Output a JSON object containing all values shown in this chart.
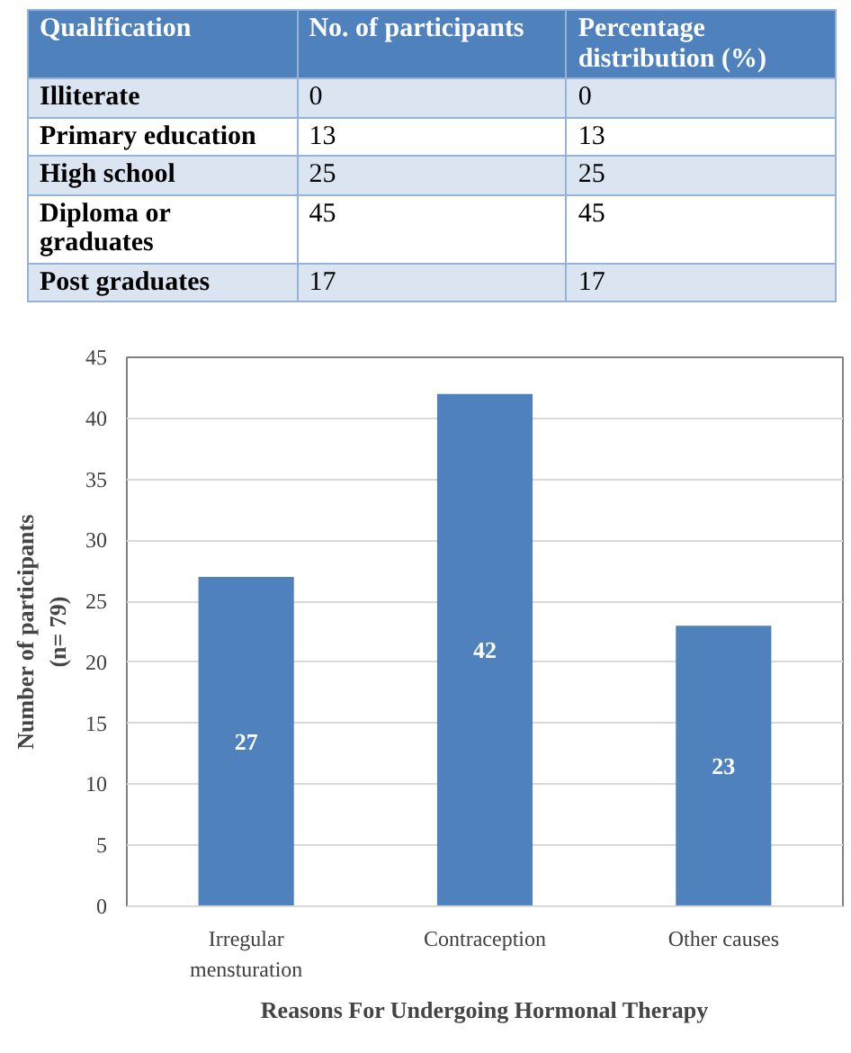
{
  "chart_data": [
    {
      "type": "other",
      "annotations": [
        "Qualification",
        "No. of participants",
        "Percentage distribution (%)",
        "Illiterate",
        "0",
        "0",
        "Primary education",
        "13",
        "13",
        "High school",
        "25",
        "25",
        "Diploma or graduates",
        "45",
        "45",
        "Post graduates",
        "17",
        "17"
      ]
    },
    {
      "type": "bar",
      "categories": [
        "Irregular\nmensturation",
        "Contraception",
        "Other causes"
      ],
      "values": [
        27,
        42,
        23
      ],
      "color": "#4f81bd",
      "ylim": [
        0,
        45
      ],
      "yticks": [
        0,
        5,
        10,
        15,
        20,
        25,
        30,
        35,
        40,
        45
      ],
      "grid": "y",
      "data_labels": true,
      "ylabel": "Number of participants\n(n= 79)",
      "xlabel": "Reasons For Undergoing Hormonal Therapy"
    }
  ]
}
